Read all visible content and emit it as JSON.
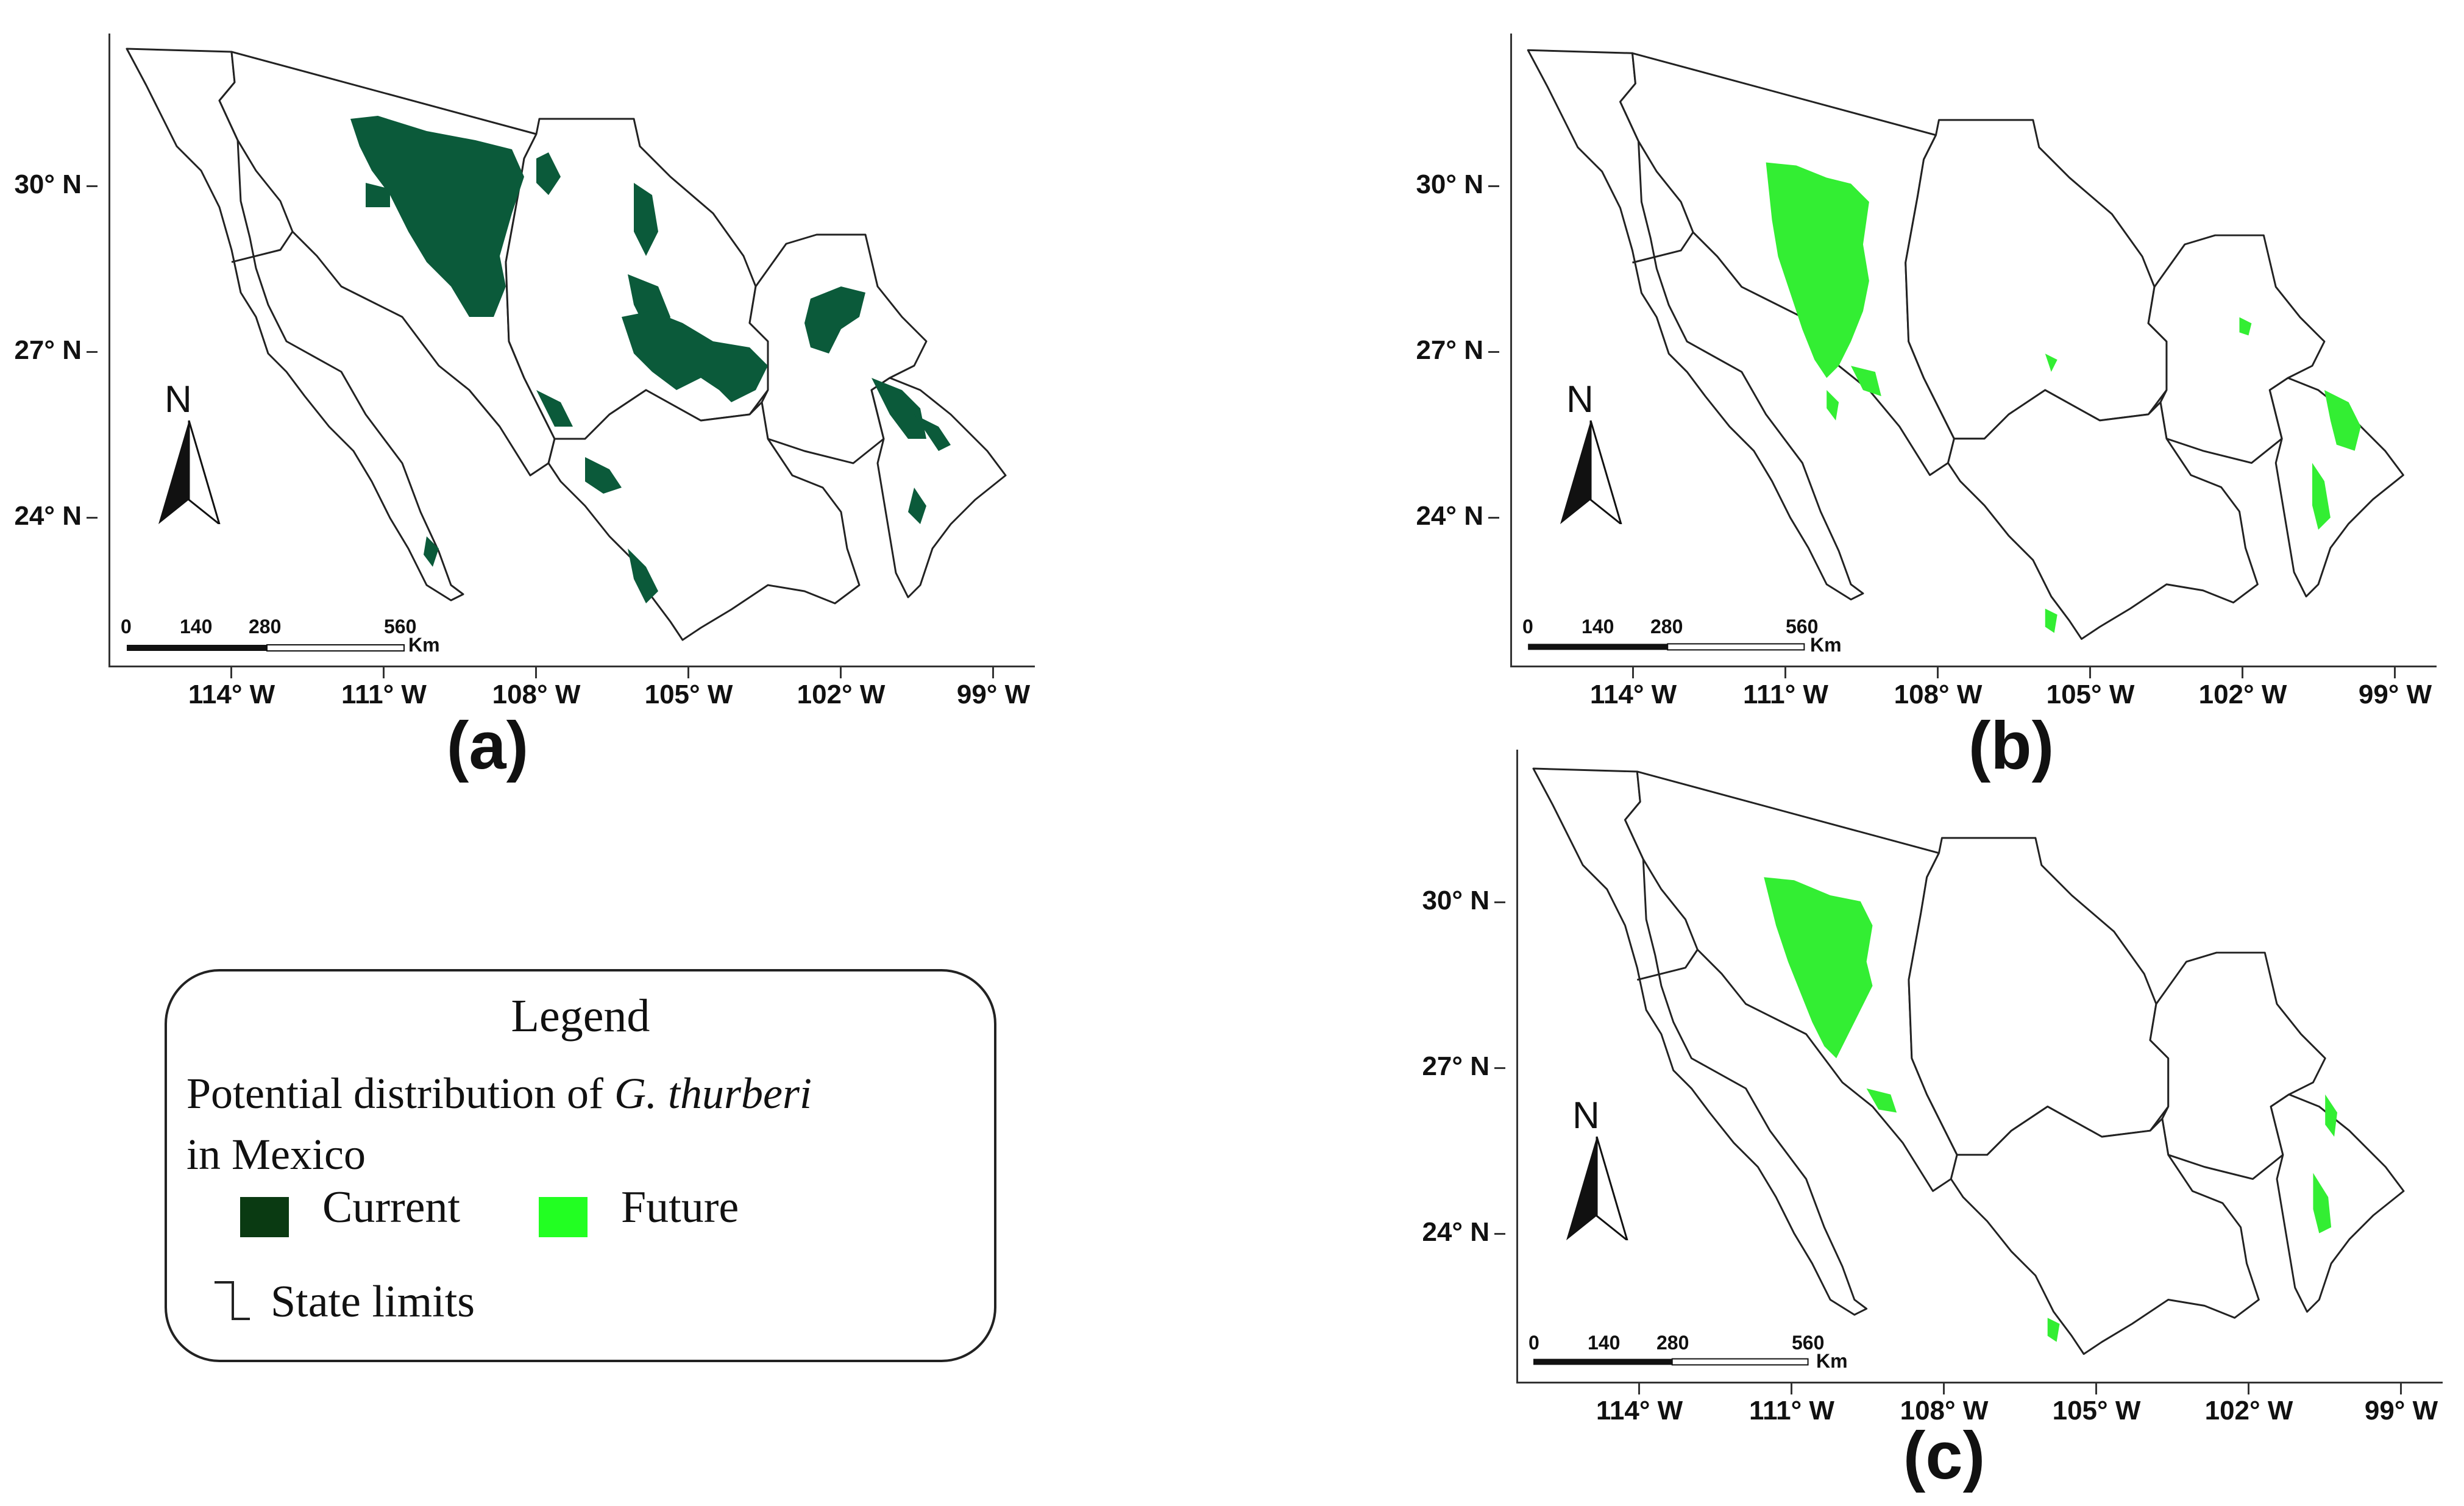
{
  "panels": [
    {
      "id": "a",
      "label": "(a)",
      "fill_color": "#0b5a3a",
      "lat_ticks": [
        "30° N",
        "27° N",
        "24° N"
      ],
      "lon_ticks": [
        "114° W",
        "111° W",
        "108° W",
        "105° W",
        "102° W",
        "99° W"
      ]
    },
    {
      "id": "b",
      "label": "(b)",
      "fill_color": "#33ee33",
      "lat_ticks": [
        "30° N",
        "27° N",
        "24° N"
      ],
      "lon_ticks": [
        "114° W",
        "111° W",
        "108° W",
        "105° W",
        "102° W",
        "99° W"
      ]
    },
    {
      "id": "c",
      "label": "(c)",
      "fill_color": "#33ee33",
      "lat_ticks": [
        "30° N",
        "27° N",
        "24° N"
      ],
      "lon_ticks": [
        "114° W",
        "111° W",
        "108° W",
        "105° W",
        "102° W",
        "99° W"
      ]
    }
  ],
  "north_arrow": {
    "letter": "N",
    "icon": "north-arrow-icon"
  },
  "scale_bar": {
    "labels": [
      "0",
      "140",
      "280",
      "560"
    ],
    "unit": "Km"
  },
  "legend": {
    "title": "Legend",
    "description_prefix": "Potential distribution of ",
    "species": "G. thurberi",
    "description_suffix": "in Mexico",
    "items": [
      {
        "label": "Current",
        "color": "#0a3a12"
      },
      {
        "label": "Future",
        "color": "#22ff22"
      }
    ],
    "state_limits_label": "State limits"
  }
}
